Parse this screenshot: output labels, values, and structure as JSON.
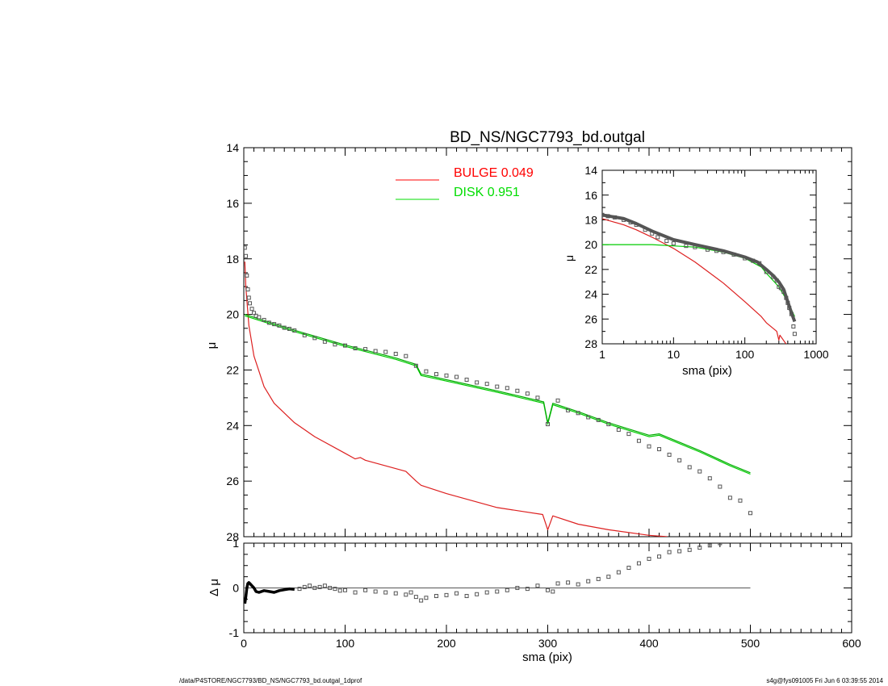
{
  "footer": {
    "left": "/data/P4STORE/NGC7793/BD_NS/NGC7793_bd.outgal_1dprof",
    "right": "s4g@fys091005  Fri Jun  6 03:39:55 2014"
  },
  "chart_data": [
    {
      "panel": "main",
      "type": "line",
      "title": "BD_NS/NGC7793_bd.outgal",
      "xlabel": "",
      "ylabel": "μ",
      "xlim": [
        0,
        600
      ],
      "ylim": [
        28,
        14
      ],
      "y_inverted": true,
      "xticks": [
        0,
        100,
        200,
        300,
        400,
        500,
        600
      ],
      "yticks": [
        14,
        16,
        18,
        20,
        22,
        24,
        26,
        28
      ],
      "legend": {
        "placement": "top-center",
        "entries": [
          {
            "label": "BULGE",
            "value": "0.049",
            "color": "#ff0000"
          },
          {
            "label": "DISK",
            "value": "0.951",
            "color": "#00dd00"
          }
        ]
      },
      "series": [
        {
          "name": "BULGE",
          "color": "#dd2020",
          "x": [
            1,
            2,
            5,
            10,
            20,
            30,
            50,
            70,
            100,
            110,
            115,
            120,
            140,
            160,
            170,
            175,
            200,
            250,
            295,
            300,
            305,
            330,
            360,
            400,
            418
          ],
          "y": [
            18.1,
            19.0,
            20.4,
            21.5,
            22.6,
            23.2,
            23.9,
            24.4,
            25.0,
            25.2,
            25.15,
            25.25,
            25.45,
            25.65,
            26.0,
            26.15,
            26.45,
            26.95,
            27.2,
            27.75,
            27.25,
            27.55,
            27.75,
            27.95,
            28.0
          ]
        },
        {
          "name": "DISK",
          "color": "#00cc00",
          "x": [
            1,
            50,
            100,
            150,
            170,
            175,
            200,
            250,
            296,
            300,
            305,
            330,
            360,
            400,
            410,
            450,
            480,
            500
          ],
          "y": [
            20.05,
            20.62,
            21.15,
            21.62,
            21.85,
            22.2,
            22.4,
            22.8,
            23.2,
            23.95,
            23.25,
            23.55,
            23.95,
            24.4,
            24.35,
            24.95,
            25.45,
            25.75
          ]
        },
        {
          "name": "",
          "color": "#00aa00",
          "x": [
            1,
            50,
            100,
            150,
            170,
            175,
            200,
            250,
            296,
            300,
            305,
            330,
            360,
            400,
            410,
            450,
            480,
            500
          ],
          "y": [
            20.0,
            20.57,
            21.1,
            21.57,
            21.8,
            22.15,
            22.35,
            22.75,
            23.15,
            23.9,
            23.2,
            23.5,
            23.9,
            24.35,
            24.3,
            24.9,
            25.4,
            25.7
          ]
        }
      ],
      "observed_points": {
        "color": "#555555",
        "x": [
          1,
          2,
          3,
          4,
          5,
          6,
          8,
          10,
          12,
          15,
          20,
          25,
          30,
          35,
          40,
          45,
          50,
          60,
          70,
          80,
          90,
          100,
          110,
          120,
          130,
          140,
          150,
          160,
          170,
          180,
          190,
          200,
          210,
          220,
          230,
          240,
          250,
          260,
          270,
          280,
          290,
          300,
          310,
          320,
          330,
          340,
          350,
          360,
          370,
          380,
          390,
          400,
          410,
          420,
          430,
          440,
          450,
          460,
          470,
          480,
          490,
          500
        ],
        "y": [
          17.6,
          17.9,
          18.6,
          19.1,
          19.4,
          19.6,
          19.8,
          19.95,
          20.05,
          20.1,
          20.2,
          20.3,
          20.35,
          20.4,
          20.48,
          20.52,
          20.58,
          20.75,
          20.85,
          20.98,
          21.08,
          21.12,
          21.22,
          21.25,
          21.32,
          21.35,
          21.42,
          21.5,
          21.85,
          22.05,
          22.15,
          22.2,
          22.25,
          22.35,
          22.45,
          22.5,
          22.6,
          22.65,
          22.75,
          22.85,
          23.0,
          23.95,
          23.1,
          23.45,
          23.55,
          23.7,
          23.8,
          23.95,
          24.15,
          24.3,
          24.55,
          24.75,
          24.85,
          25.05,
          25.25,
          25.5,
          25.65,
          25.9,
          26.2,
          26.6,
          26.7,
          27.15
        ]
      }
    },
    {
      "panel": "residual",
      "type": "scatter",
      "xlabel": "sma (pix)",
      "ylabel": "Δ μ",
      "xlim": [
        0,
        600
      ],
      "ylim": [
        -1,
        1
      ],
      "xticks": [
        0,
        100,
        200,
        300,
        400,
        500,
        600
      ],
      "yticks": [
        -1,
        0,
        1
      ],
      "zero_line": {
        "x": [
          0,
          500
        ],
        "y": 0
      },
      "series": [
        {
          "name": "",
          "color": "#000000",
          "x": [
            1,
            2,
            3,
            4,
            5,
            6,
            8,
            10,
            12,
            15,
            20,
            25,
            30,
            35,
            40,
            45,
            50
          ],
          "y": [
            -0.35,
            -0.2,
            0.0,
            0.1,
            0.12,
            0.1,
            0.05,
            0.0,
            -0.08,
            -0.1,
            -0.06,
            -0.08,
            -0.1,
            -0.06,
            -0.04,
            -0.02,
            -0.03
          ]
        }
      ],
      "points": {
        "color": "#555555",
        "x": [
          55,
          60,
          65,
          70,
          75,
          80,
          85,
          90,
          95,
          100,
          110,
          120,
          130,
          140,
          150,
          160,
          165,
          170,
          175,
          180,
          190,
          200,
          210,
          220,
          230,
          240,
          250,
          260,
          270,
          280,
          290,
          300,
          305,
          310,
          320,
          330,
          340,
          350,
          360,
          370,
          380,
          390,
          400,
          410,
          420,
          430,
          440,
          450,
          460,
          470
        ],
        "y": [
          -0.02,
          0.02,
          0.05,
          0.0,
          0.02,
          0.05,
          0.0,
          -0.02,
          -0.06,
          -0.05,
          -0.1,
          -0.05,
          -0.08,
          -0.1,
          -0.12,
          -0.15,
          -0.1,
          -0.2,
          -0.28,
          -0.22,
          -0.18,
          -0.16,
          -0.12,
          -0.18,
          -0.14,
          -0.1,
          -0.08,
          -0.05,
          0.0,
          -0.02,
          0.05,
          -0.05,
          -0.08,
          0.1,
          0.12,
          0.08,
          0.15,
          0.2,
          0.25,
          0.35,
          0.45,
          0.55,
          0.65,
          0.7,
          0.8,
          0.82,
          0.85,
          0.9,
          0.95,
          1.0
        ]
      }
    },
    {
      "panel": "inset",
      "type": "line",
      "xlabel": "sma (pix)",
      "ylabel": "μ",
      "xscale": "log",
      "xlim": [
        1,
        1000
      ],
      "ylim": [
        28,
        14
      ],
      "y_inverted": true,
      "xticks": [
        1,
        10,
        100,
        1000
      ],
      "yticks": [
        14,
        16,
        18,
        20,
        22,
        24,
        26,
        28
      ],
      "series": [
        {
          "name": "BULGE",
          "color": "#dd2020",
          "x": [
            1,
            2,
            3,
            5,
            10,
            20,
            50,
            100,
            170,
            200,
            280,
            300,
            310,
            400
          ],
          "y": [
            17.9,
            18.4,
            18.8,
            19.4,
            20.3,
            21.4,
            23.1,
            24.6,
            25.8,
            26.3,
            27.0,
            27.7,
            27.3,
            28.2
          ]
        },
        {
          "name": "DISK",
          "color": "#00cc00",
          "x": [
            1,
            5,
            10,
            20,
            50,
            100,
            170,
            200,
            300,
            400,
            500
          ],
          "y": [
            20.0,
            20.0,
            20.1,
            20.2,
            20.6,
            21.1,
            21.8,
            22.3,
            23.4,
            24.6,
            25.8
          ]
        },
        {
          "name": "",
          "color": "#000000",
          "x": [
            1,
            2,
            3,
            5,
            10,
            20,
            50,
            100,
            150,
            200,
            250,
            300,
            350,
            400,
            450,
            500
          ],
          "y": [
            17.6,
            17.9,
            18.3,
            18.9,
            19.6,
            20.0,
            20.5,
            21.0,
            21.4,
            22.0,
            22.5,
            23.0,
            23.6,
            24.6,
            25.5,
            26.2
          ]
        }
      ],
      "points": {
        "color": "#555555",
        "x": [
          1,
          1.2,
          1.5,
          2,
          2.5,
          3,
          4,
          5,
          6,
          8,
          10,
          15,
          20,
          30,
          40,
          50,
          70,
          100,
          130,
          160,
          200,
          250,
          280,
          300,
          320,
          350,
          380,
          400,
          420,
          450,
          480,
          500
        ],
        "y": [
          17.6,
          17.7,
          17.8,
          18.0,
          18.2,
          18.4,
          18.8,
          19.1,
          19.4,
          19.7,
          19.9,
          20.1,
          20.2,
          20.4,
          20.5,
          20.6,
          20.8,
          21.1,
          21.3,
          21.5,
          22.2,
          22.6,
          22.9,
          23.4,
          23.5,
          23.8,
          24.3,
          24.7,
          25.1,
          25.6,
          26.6,
          27.2
        ]
      }
    }
  ]
}
